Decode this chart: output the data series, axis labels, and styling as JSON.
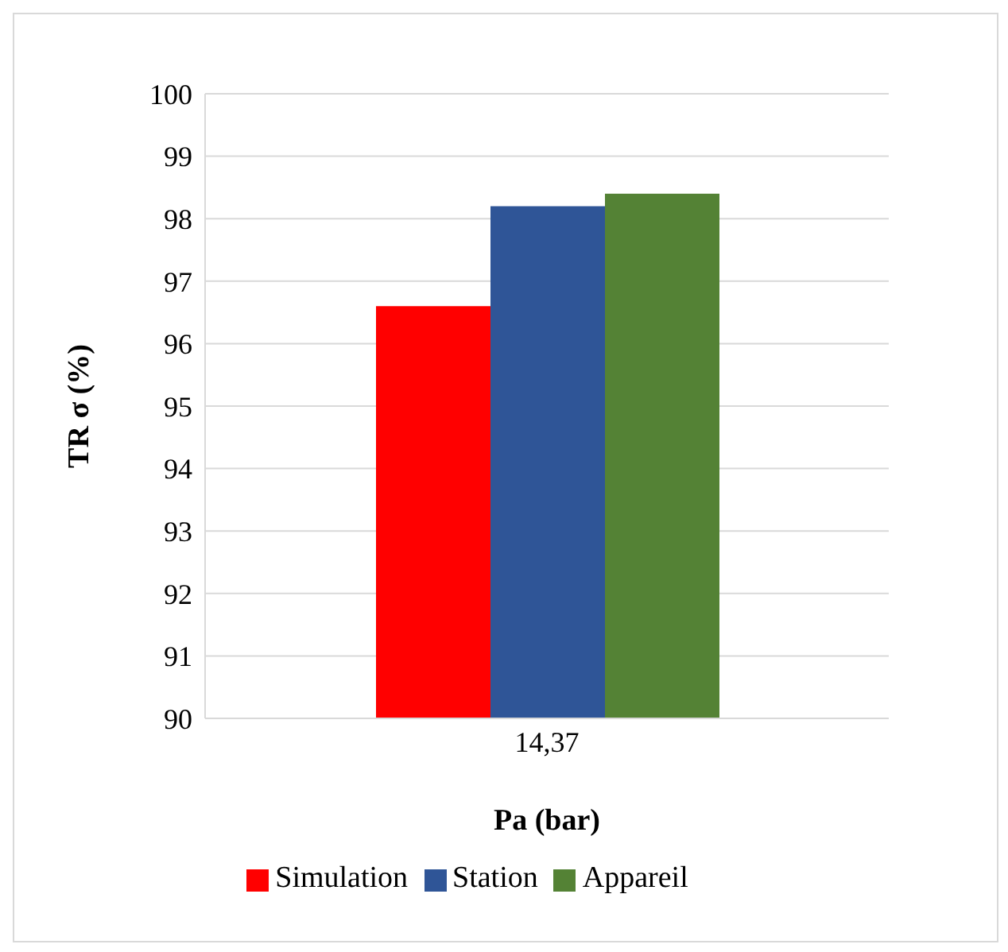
{
  "chart_data": {
    "type": "bar",
    "xlabel": "Pa (bar)",
    "ylabel": "TR σ (%)",
    "categories": [
      "14,37"
    ],
    "series": [
      {
        "name": "Simulation",
        "color": "#ff0000",
        "values": [
          96.6
        ]
      },
      {
        "name": "Station",
        "color": "#2f5597",
        "values": [
          98.2
        ]
      },
      {
        "name": "Appareil",
        "color": "#548235",
        "values": [
          98.4
        ]
      }
    ],
    "ylim": [
      90,
      100
    ],
    "yticks": [
      90,
      91,
      92,
      93,
      94,
      95,
      96,
      97,
      98,
      99,
      100
    ],
    "grid": "y",
    "legend": "bottom"
  }
}
